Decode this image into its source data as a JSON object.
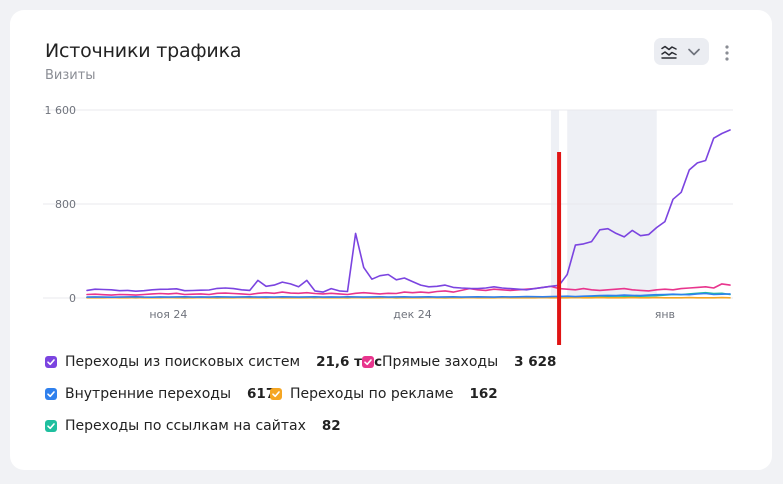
{
  "widget": {
    "title": "Источники трафика",
    "subtitle": "Визиты",
    "chart_type_icon": "line-chart-icon",
    "dropdown_icon": "chevron-down-icon",
    "menu_icon": "more-vertical-icon"
  },
  "chart_data": {
    "type": "line",
    "ylim": [
      0,
      1600
    ],
    "y_ticks": [
      {
        "value": 0,
        "label": "0"
      },
      {
        "value": 800,
        "label": "800"
      },
      {
        "value": 1600,
        "label": "1 600"
      }
    ],
    "x_ticks": [
      {
        "index": 10,
        "label": "ноя 24"
      },
      {
        "index": 40,
        "label": "дек 24"
      },
      {
        "index": 71,
        "label": "янв"
      }
    ],
    "grid": true,
    "legend_position": "bottom",
    "highlighted_ranges": [
      [
        57,
        58
      ],
      [
        59,
        70
      ]
    ],
    "marker_index": 58,
    "marker_color": "#e01414",
    "series": [
      {
        "name": "Переходы из поисковых систем",
        "total": "21,6 тыс",
        "color": "#7b44e0",
        "values": [
          65,
          75,
          72,
          70,
          62,
          65,
          58,
          62,
          70,
          74,
          75,
          78,
          62,
          64,
          66,
          68,
          82,
          85,
          80,
          70,
          65,
          150,
          100,
          110,
          135,
          120,
          95,
          150,
          60,
          50,
          80,
          60,
          55,
          550,
          260,
          160,
          190,
          200,
          155,
          170,
          140,
          110,
          95,
          100,
          110,
          90,
          85,
          82,
          80,
          85,
          95,
          85,
          80,
          75,
          70,
          80,
          90,
          100,
          108,
          200,
          450,
          460,
          480,
          580,
          590,
          550,
          520,
          575,
          530,
          540,
          600,
          650,
          840,
          900,
          1090,
          1150,
          1170,
          1360,
          1400,
          1430
        ]
      },
      {
        "name": "Прямые заходы",
        "total": "3 628",
        "color": "#e8358d",
        "values": [
          30,
          32,
          28,
          25,
          30,
          28,
          25,
          30,
          35,
          38,
          35,
          40,
          30,
          32,
          35,
          30,
          40,
          42,
          38,
          35,
          30,
          40,
          45,
          40,
          50,
          42,
          40,
          45,
          38,
          35,
          40,
          35,
          30,
          40,
          45,
          40,
          35,
          40,
          38,
          50,
          45,
          50,
          45,
          55,
          60,
          50,
          65,
          80,
          70,
          65,
          75,
          70,
          65,
          70,
          75,
          80,
          90,
          100,
          80,
          75,
          70,
          80,
          70,
          65,
          70,
          75,
          80,
          70,
          65,
          60,
          70,
          75,
          70,
          80,
          85,
          90,
          95,
          85,
          120,
          110
        ]
      },
      {
        "name": "Внутренние переходы",
        "total": "617",
        "color": "#2f80ed",
        "values": [
          8,
          9,
          8,
          7,
          8,
          9,
          10,
          8,
          7,
          9,
          8,
          9,
          10,
          8,
          9,
          8,
          10,
          9,
          8,
          9,
          10,
          8,
          9,
          8,
          10,
          9,
          8,
          9,
          10,
          8,
          9,
          8,
          10,
          9,
          8,
          9,
          10,
          8,
          9,
          10,
          8,
          9,
          10,
          8,
          9,
          10,
          8,
          9,
          10,
          9,
          8,
          10,
          9,
          10,
          12,
          11,
          10,
          12,
          14,
          15,
          12,
          15,
          18,
          20,
          22,
          20,
          25,
          22,
          20,
          25,
          28,
          30,
          32,
          30,
          28,
          35,
          38,
          30,
          32,
          35
        ]
      },
      {
        "name": "Переходы по рекламе",
        "total": "162",
        "color": "#f5a623",
        "values": [
          2,
          2,
          2,
          3,
          2,
          2,
          3,
          2,
          2,
          2,
          3,
          2,
          2,
          2,
          3,
          2,
          2,
          2,
          2,
          3,
          2,
          2,
          2,
          3,
          2,
          2,
          2,
          2,
          3,
          2,
          2,
          2,
          2,
          3,
          2,
          2,
          2,
          3,
          2,
          2,
          2,
          2,
          3,
          2,
          2,
          2,
          2,
          3,
          2,
          2,
          2,
          3,
          2,
          2,
          2,
          2,
          3,
          2,
          2,
          2,
          3,
          2,
          2,
          3,
          2,
          2,
          2,
          3,
          2,
          2,
          3,
          2,
          2,
          2,
          3,
          2,
          2,
          2,
          3,
          2
        ]
      },
      {
        "name": "Переходы по ссылкам на сайтах",
        "total": "82",
        "color": "#1fbf9f",
        "values": [
          4,
          3,
          4,
          3,
          4,
          3,
          2,
          3,
          4,
          3,
          4,
          3,
          2,
          3,
          4,
          3,
          2,
          3,
          4,
          3,
          4,
          3,
          2,
          3,
          4,
          3,
          4,
          3,
          2,
          3,
          4,
          3,
          2,
          3,
          4,
          3,
          4,
          3,
          2,
          3,
          4,
          3,
          4,
          3,
          2,
          3,
          4,
          3,
          4,
          3,
          4,
          5,
          4,
          3,
          4,
          5,
          4,
          3,
          4,
          5,
          6,
          8,
          10,
          12,
          10,
          8,
          10,
          12,
          15,
          18,
          20,
          25,
          30,
          28,
          35,
          40,
          45,
          38,
          40,
          30
        ]
      }
    ]
  }
}
